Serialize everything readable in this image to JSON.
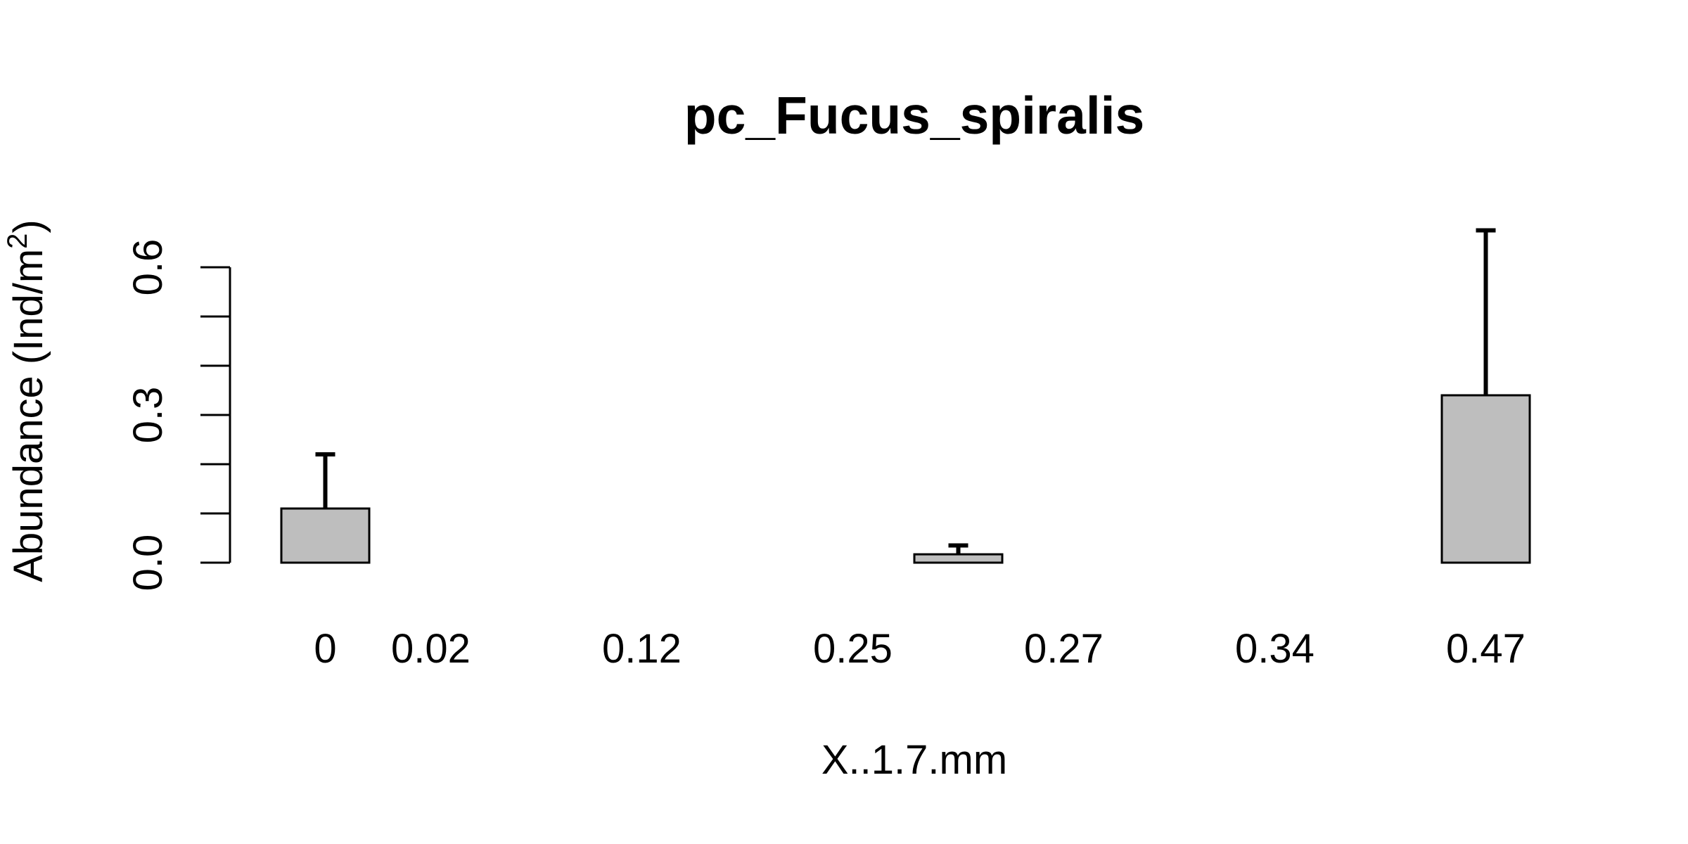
{
  "chart_data": {
    "type": "bar",
    "title": "pc_Fucus_spiralis",
    "xlabel": "X..1.7.mm",
    "ylabel_main": "Abundance (Ind/m",
    "ylabel_sup": "2",
    "ylabel_close": ")",
    "categories": [
      "0",
      "0.02",
      "",
      "0.12",
      "",
      "0.25",
      "",
      "0.27",
      "",
      "0.34",
      "",
      "0.47"
    ],
    "values": [
      0.11,
      0.0,
      0.0,
      0.0,
      0.0,
      0.0,
      0.017,
      0.0,
      0.0,
      0.0,
      0.0,
      0.34
    ],
    "error_upper": [
      0.22,
      0.0,
      0.0,
      0.0,
      0.0,
      0.0,
      0.035,
      0.0,
      0.0,
      0.0,
      0.0,
      0.675
    ],
    "ylim": [
      0,
      0.6
    ],
    "yticks": [
      0,
      0.1,
      0.2,
      0.3,
      0.4,
      0.5,
      0.6
    ],
    "ytick_labels": [
      "0.0",
      "",
      "",
      "0.3",
      "",
      "",
      "0.6"
    ],
    "bar_color": "#bebebe",
    "grid": false
  }
}
